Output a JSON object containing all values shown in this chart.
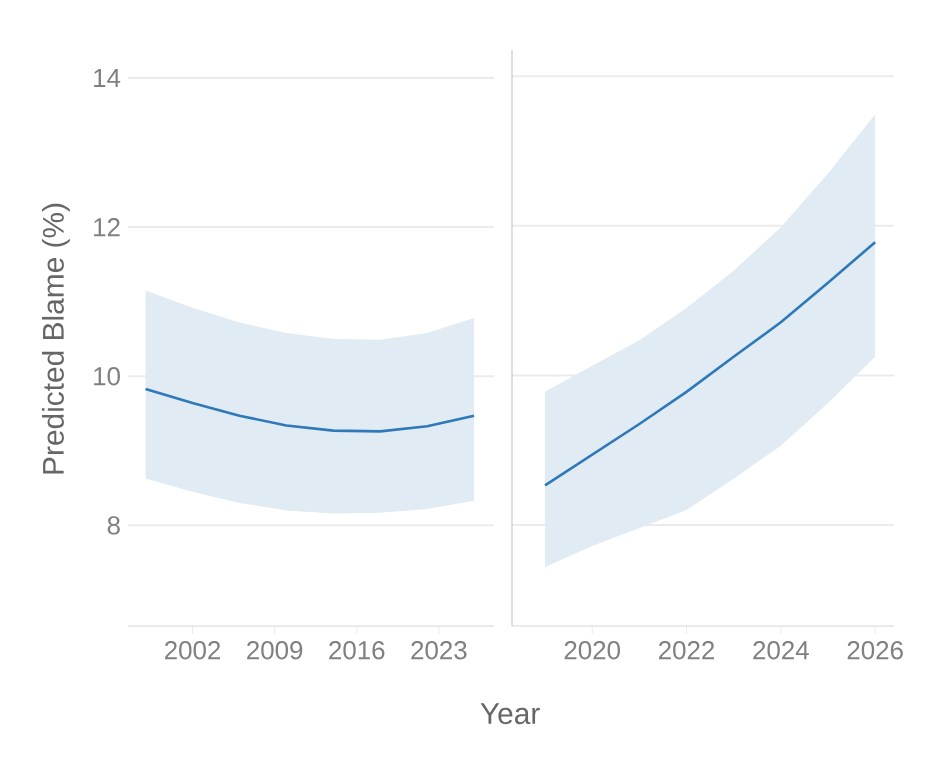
{
  "chart_data": [
    {
      "type": "line",
      "xlabel": "Year",
      "ylabel": "Predicted Blame (%)",
      "x": [
        1998,
        2002,
        2006,
        2010,
        2014,
        2018,
        2022,
        2026
      ],
      "series": [
        {
          "color": "#2f78b9",
          "values": [
            9.83,
            9.64,
            9.47,
            9.34,
            9.27,
            9.26,
            9.33,
            9.47
          ],
          "upper": [
            11.15,
            10.92,
            10.72,
            10.58,
            10.5,
            10.49,
            10.58,
            10.78
          ],
          "lower": [
            8.63,
            8.45,
            8.3,
            8.2,
            8.16,
            8.17,
            8.22,
            8.33
          ]
        }
      ],
      "xlim": [
        1996.5,
        2027.7
      ],
      "ylim": [
        6.65,
        14
      ],
      "xticks": [
        2002,
        2009,
        2016,
        2023
      ],
      "yticks": [
        8,
        10,
        12,
        14
      ],
      "grid": "y"
    },
    {
      "type": "line",
      "x": [
        2019,
        2020,
        2021,
        2022,
        2023,
        2024,
        2025,
        2026
      ],
      "series": [
        {
          "color": "#2f78b9",
          "values": [
            8.53,
            8.94,
            9.35,
            9.78,
            10.25,
            10.71,
            11.24,
            11.78
          ],
          "upper": [
            9.78,
            10.13,
            10.47,
            10.9,
            11.4,
            11.98,
            12.7,
            13.49
          ],
          "lower": [
            7.44,
            7.72,
            7.96,
            8.2,
            8.62,
            9.06,
            9.63,
            10.25
          ]
        }
      ],
      "xlim": [
        2018.3,
        2026.4
      ],
      "ylim": [
        6.65,
        14.35
      ],
      "xticks": [
        2020,
        2022,
        2024,
        2026
      ],
      "yticks": [
        8,
        10,
        12,
        14
      ],
      "grid": "y",
      "tick_labels": "x"
    }
  ]
}
